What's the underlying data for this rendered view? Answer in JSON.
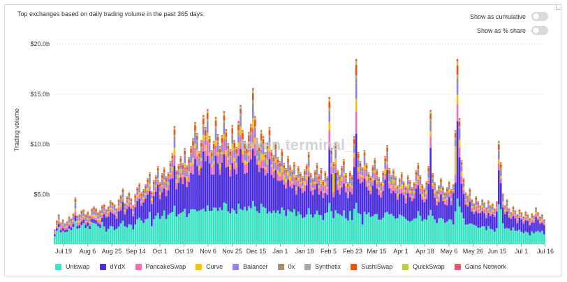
{
  "subtitle": "Top exchanges based on daily trading volume in the past 365 days.",
  "controls": {
    "cumulative_label": "Show as cumulative",
    "share_label": "Show as % share"
  },
  "watermark": "token terminal_",
  "chart_data": {
    "type": "bar",
    "stacked": true,
    "ylabel": "Trading volume",
    "ylim": [
      0,
      20
    ],
    "yticks": [
      "",
      "$5.0b",
      "$10.0b",
      "$15.0b",
      "$20.0b"
    ],
    "yticks_values": [
      0,
      5,
      10,
      15,
      20
    ],
    "xticks": [
      "Jul 19",
      "Aug 6",
      "Aug 25",
      "Sep 14",
      "Oct 1",
      "Oct 19",
      "Nov 6",
      "Nov 25",
      "Dec 15",
      "Jan 1",
      "Jan 18",
      "Feb 5",
      "Feb 23",
      "Mar 15",
      "Apr 1",
      "Apr 18",
      "May 6",
      "May 26",
      "Jun 15",
      "Jul 1",
      "Jul 16"
    ],
    "grid": true,
    "legend_position": "bottom",
    "series": [
      {
        "name": "Uniswap",
        "color": "#3ee3c4"
      },
      {
        "name": "dYdX",
        "color": "#4b2ee0"
      },
      {
        "name": "PancakeSwap",
        "color": "#f06fb3"
      },
      {
        "name": "Curve",
        "color": "#f2c311"
      },
      {
        "name": "Balancer",
        "color": "#8d86e8"
      },
      {
        "name": "0x",
        "color": "#a98e6b"
      },
      {
        "name": "Synthetix",
        "color": "#a6a6a6"
      },
      {
        "name": "SushiSwap",
        "color": "#f0521c"
      },
      {
        "name": "QuickSwap",
        "color": "#b7cf4a"
      },
      {
        "name": "Gains Network",
        "color": "#f0546a"
      }
    ],
    "daily_totals_billions": [
      1.5,
      2.4,
      3.0,
      2.2,
      2.5,
      2.1,
      2.3,
      2.8,
      2.6,
      3.1,
      4.7,
      2.9,
      3.0,
      3.4,
      3.5,
      3.0,
      3.3,
      2.9,
      3.6,
      3.8,
      3.6,
      3.2,
      3.4,
      3.9,
      4.0,
      3.5,
      3.8,
      4.4,
      4.2,
      4.0,
      3.6,
      4.5,
      4.9,
      5.6,
      4.1,
      4.8,
      5.2,
      4.6,
      3.9,
      5.0,
      5.7,
      6.1,
      5.2,
      5.5,
      6.0,
      6.6,
      7.2,
      5.3,
      6.4,
      6.9,
      7.8,
      6.2,
      7.1,
      7.7,
      6.8,
      7.2,
      8.3,
      9.1,
      11.8,
      7.4,
      8.0,
      8.8,
      8.1,
      9.6,
      7.9,
      8.7,
      9.8,
      10.6,
      12.2,
      11.1,
      9.3,
      10.4,
      12.9,
      11.7,
      13.5,
      10.8,
      9.4,
      10.3,
      12.7,
      11.0,
      9.8,
      10.9,
      13.3,
      11.5,
      10.1,
      9.5,
      11.9,
      10.4,
      9.7,
      12.3,
      13.9,
      11.4,
      10.3,
      9.8,
      11.2,
      12.0,
      15.6,
      12.8,
      10.6,
      9.9,
      11.4,
      10.8,
      9.2,
      10.1,
      11.7,
      9.4,
      8.9,
      10.2,
      8.7,
      8.3,
      9.5,
      8.1,
      7.6,
      8.8,
      7.9,
      7.4,
      8.2,
      6.9,
      7.8,
      7.2,
      6.8,
      7.5,
      8.0,
      9.2,
      7.1,
      6.6,
      7.4,
      8.1,
      7.0,
      7.6,
      6.4,
      7.3,
      6.8,
      14.7,
      9.6,
      8.2,
      10.2,
      7.4,
      6.9,
      7.8,
      8.5,
      7.1,
      6.2,
      7.3,
      6.9,
      10.8,
      18.5,
      9.2,
      8.3,
      7.7,
      9.4,
      8.1,
      7.2,
      6.8,
      7.9,
      8.6,
      7.5,
      6.7,
      6.2,
      7.3,
      8.8,
      9.9,
      7.6,
      6.9,
      7.5,
      6.8,
      5.9,
      6.6,
      7.2,
      6.3,
      5.8,
      6.9,
      6.4,
      5.7,
      6.2,
      7.4,
      8.1,
      6.9,
      6.0,
      5.6,
      6.3,
      7.8,
      13.4,
      7.1,
      6.2,
      5.4,
      5.9,
      6.6,
      5.8,
      5.2,
      5.7,
      6.3,
      5.5,
      6.0,
      11.4,
      18.5,
      12.6,
      8.4,
      6.6,
      5.2,
      4.9,
      5.6,
      4.5,
      4.1,
      4.8,
      4.3,
      3.9,
      4.5,
      4.2,
      3.7,
      4.4,
      3.9,
      4.1,
      3.6,
      4.3,
      10.3,
      8.2,
      5.1,
      3.9,
      4.5,
      3.6,
      3.2,
      3.8,
      3.4,
      3.0,
      3.5,
      3.2,
      2.8,
      3.3,
      3.0,
      2.6,
      3.1,
      2.9,
      3.7,
      3.2,
      2.8,
      3.0,
      2.5
    ]
  },
  "legend": [
    {
      "name": "Uniswap",
      "color": "#3ee3c4"
    },
    {
      "name": "dYdX",
      "color": "#4b2ee0"
    },
    {
      "name": "PancakeSwap",
      "color": "#f06fb3"
    },
    {
      "name": "Curve",
      "color": "#f2c311"
    },
    {
      "name": "Balancer",
      "color": "#8d86e8"
    },
    {
      "name": "0x",
      "color": "#a98e6b"
    },
    {
      "name": "Synthetix",
      "color": "#a6a6a6"
    },
    {
      "name": "SushiSwap",
      "color": "#f0521c"
    },
    {
      "name": "QuickSwap",
      "color": "#b7cf4a"
    },
    {
      "name": "Gains Network",
      "color": "#f0546a"
    }
  ]
}
